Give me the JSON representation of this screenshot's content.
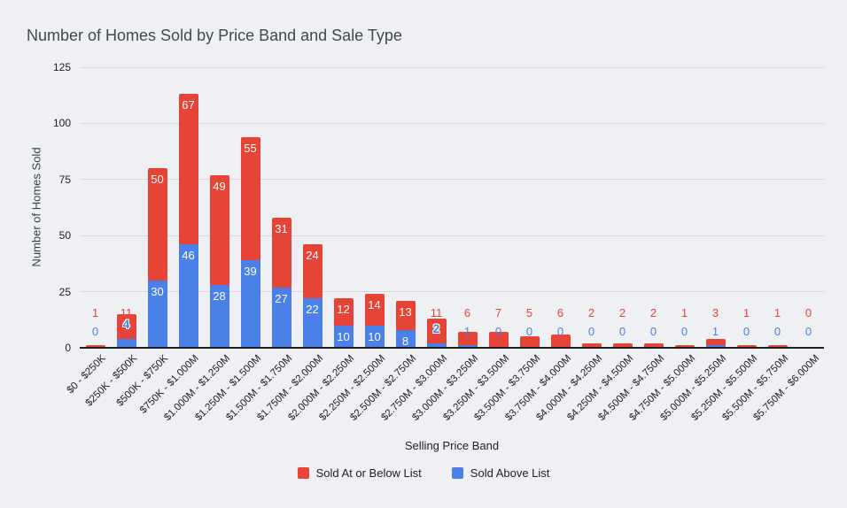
{
  "colors": {
    "background": "#eef0f4",
    "gridline": "#d6d9de",
    "axis_line": "#1b1d20",
    "tick_text": "#202124",
    "title_text": "#44474c",
    "series_red": "#e74438",
    "series_blue": "#4a80e8"
  },
  "chart_data": {
    "type": "bar",
    "stacked": true,
    "title": "Number of Homes Sold by Price Band and Sale Type",
    "xlabel": "Selling Price Band",
    "ylabel": "Number of Homes Sold",
    "ylim": [
      0,
      125
    ],
    "yticks": [
      0,
      25,
      50,
      75,
      100,
      125
    ],
    "grid": "horizontal",
    "legend_position": "bottom",
    "categories": [
      "$0 - $250K",
      "$250K - $500K",
      "$500K - $750K",
      "$750K - $1.000M",
      "$1.000M - $1.250M",
      "$1.250M - $1.500M",
      "$1.500M - $1.750M",
      "$1.750M - $2.000M",
      "$2.000M - $2.250M",
      "$2.250M - $2.500M",
      "$2.500M - $2.750M",
      "$2.750M - $3.000M",
      "$3.000M - $3.250M",
      "$3.250M - $3.500M",
      "$3.500M - $3.750M",
      "$3.750M - $4.000M",
      "$4.000M - $4.250M",
      "$4.250M - $4.500M",
      "$4.500M - $4.750M",
      "$4.750M - $5.000M",
      "$5.000M - $5.250M",
      "$5.250M - $5.500M",
      "$5.500M - $5.750M",
      "$5.750M - $6.000M"
    ],
    "series": [
      {
        "name": "Sold At or Below List",
        "color": "#e74438",
        "stack_position": "top",
        "values": [
          1,
          11,
          50,
          67,
          49,
          55,
          31,
          24,
          12,
          14,
          13,
          11,
          6,
          7,
          5,
          6,
          2,
          2,
          2,
          1,
          3,
          1,
          1,
          0
        ]
      },
      {
        "name": "Sold Above List",
        "color": "#4a80e8",
        "stack_position": "bottom",
        "values": [
          0,
          4,
          30,
          46,
          28,
          39,
          27,
          22,
          10,
          10,
          8,
          2,
          1,
          0,
          0,
          0,
          0,
          0,
          0,
          0,
          1,
          0,
          0,
          0
        ]
      }
    ]
  }
}
